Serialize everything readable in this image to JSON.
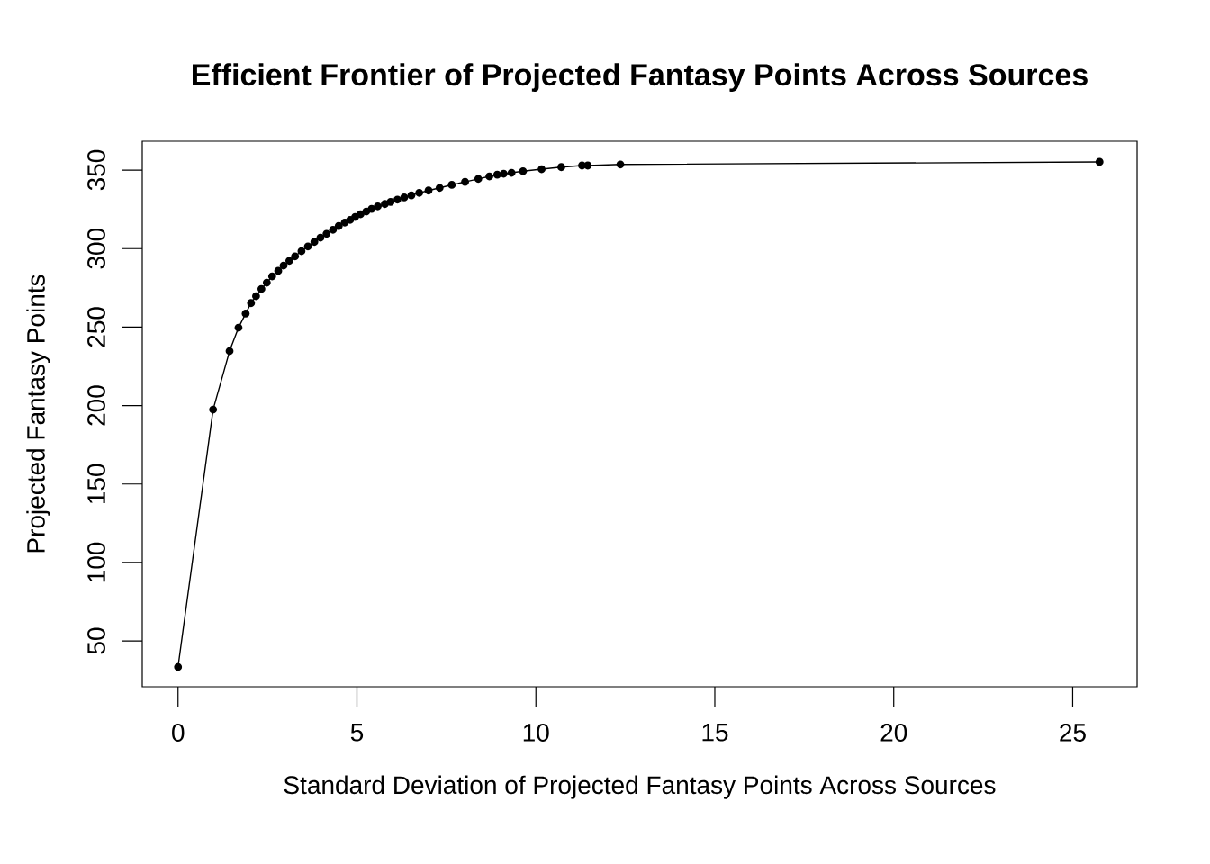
{
  "chart_data": {
    "type": "line",
    "title": "Efficient Frontier of Projected Fantasy Points Across Sources",
    "xlabel": "Standard Deviation of Projected Fantasy Points Across Sources",
    "ylabel": "Projected Fantasy Points",
    "x": [
      0.0,
      0.98,
      1.44,
      1.69,
      1.89,
      2.04,
      2.18,
      2.33,
      2.48,
      2.63,
      2.8,
      2.95,
      3.11,
      3.27,
      3.45,
      3.63,
      3.81,
      3.98,
      4.15,
      4.33,
      4.49,
      4.66,
      4.81,
      4.95,
      5.1,
      5.26,
      5.41,
      5.58,
      5.78,
      5.94,
      6.13,
      6.32,
      6.52,
      6.74,
      7.0,
      7.31,
      7.65,
      8.02,
      8.39,
      8.7,
      8.92,
      9.1,
      9.32,
      9.64,
      10.16,
      10.71,
      11.29,
      11.45,
      12.36,
      25.75
    ],
    "series": [
      {
        "color": "#000000",
        "values": [
          33.4,
          197.4,
          234.7,
          249.6,
          258.6,
          265.3,
          269.7,
          274.3,
          278.3,
          282.3,
          285.8,
          289.2,
          292.2,
          295.1,
          298.4,
          301.4,
          304.3,
          307.0,
          309.4,
          312.0,
          314.4,
          316.6,
          318.3,
          320.2,
          321.9,
          323.6,
          325.3,
          326.9,
          328.4,
          329.7,
          331.2,
          332.6,
          333.9,
          335.5,
          337.0,
          338.7,
          340.6,
          342.5,
          344.4,
          346.0,
          347.1,
          347.7,
          348.3,
          349.3,
          350.6,
          351.9,
          352.9,
          352.9,
          353.6,
          355.2
        ]
      }
    ],
    "xlim": [
      -1.0,
      26.8
    ],
    "ylim": [
      20.8,
      368.4
    ],
    "xticks": [
      0,
      5,
      10,
      15,
      20,
      25
    ],
    "yticks": [
      50,
      100,
      150,
      200,
      250,
      300,
      350
    ],
    "marker": "circle",
    "line_style": "solid",
    "grid": false
  }
}
